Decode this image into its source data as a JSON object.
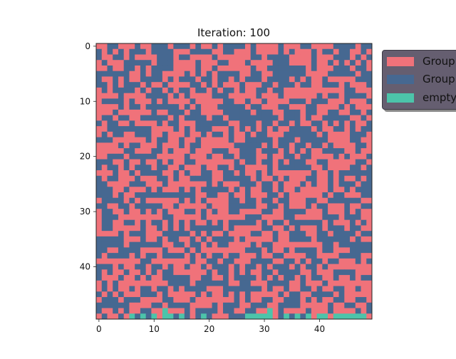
{
  "chart_data": {
    "type": "heatmap",
    "title": "Iteration: 100",
    "grid_size": [
      50,
      50
    ],
    "x_ticks": [
      "0",
      "10",
      "20",
      "30",
      "40"
    ],
    "y_ticks": [
      "0",
      "10",
      "20",
      "30",
      "40"
    ],
    "xlim": [
      -0.5,
      49.5
    ],
    "ylim": [
      49.5,
      -0.5
    ],
    "grid": false,
    "legend_position": "outside right",
    "categories": [
      {
        "label": "Group",
        "color": "#f0727a"
      },
      {
        "label": "Group",
        "color": "#466891"
      },
      {
        "label": "empty",
        "color": "#4cc4aa"
      }
    ],
    "layout_seed": 7,
    "group_a_share": 0.52,
    "empty_cells": [
      [
        6,
        49
      ],
      [
        8,
        49
      ],
      [
        10,
        49
      ],
      [
        12,
        48
      ],
      [
        12,
        49
      ],
      [
        13,
        49
      ],
      [
        15,
        49
      ],
      [
        19,
        49
      ],
      [
        27,
        49
      ],
      [
        28,
        49
      ],
      [
        29,
        49
      ],
      [
        30,
        49
      ],
      [
        31,
        48
      ],
      [
        31,
        49
      ],
      [
        34,
        49
      ],
      [
        36,
        49
      ],
      [
        38,
        49
      ],
      [
        40,
        49
      ],
      [
        41,
        49
      ],
      [
        43,
        49
      ],
      [
        44,
        49
      ],
      [
        45,
        49
      ],
      [
        46,
        49
      ],
      [
        47,
        49
      ],
      [
        48,
        49
      ]
    ]
  }
}
